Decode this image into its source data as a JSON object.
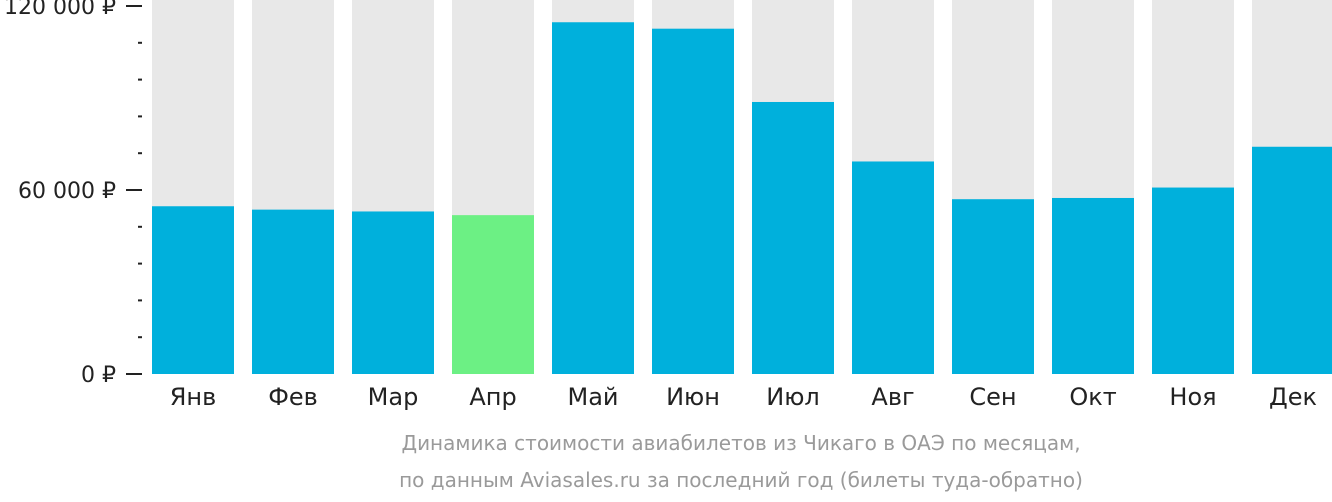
{
  "chart_data": {
    "type": "bar",
    "categories": [
      "Янв",
      "Фев",
      "Мар",
      "Апр",
      "Май",
      "Июн",
      "Июл",
      "Авг",
      "Сен",
      "Окт",
      "Ноя",
      "Дек"
    ],
    "values": [
      54700,
      53600,
      53000,
      51800,
      114700,
      112600,
      88700,
      69300,
      57000,
      57400,
      60800,
      74100
    ],
    "ylim": [
      0,
      120000
    ],
    "y_ticks": [
      {
        "value": 0,
        "label": "0 ₽"
      },
      {
        "value": 60000,
        "label": "60 000 ₽"
      },
      {
        "value": 120000,
        "label": "120 000 ₽"
      }
    ],
    "minor_tick_step": 12000,
    "caption_lines": [
      "Динамика стоимости авиабилетов из Чикаго в ОАЭ по месяцам,",
      "по данным Aviasales.ru за последний год (билеты туда-обратно)"
    ],
    "highlight_index": 3,
    "colors": {
      "bar": "#00b0dc",
      "highlight": "#6cf084",
      "background_bar": "#e8e8e8",
      "axis": "#222222",
      "caption": "#9a9a9a"
    },
    "grid": false,
    "legend": "none"
  }
}
